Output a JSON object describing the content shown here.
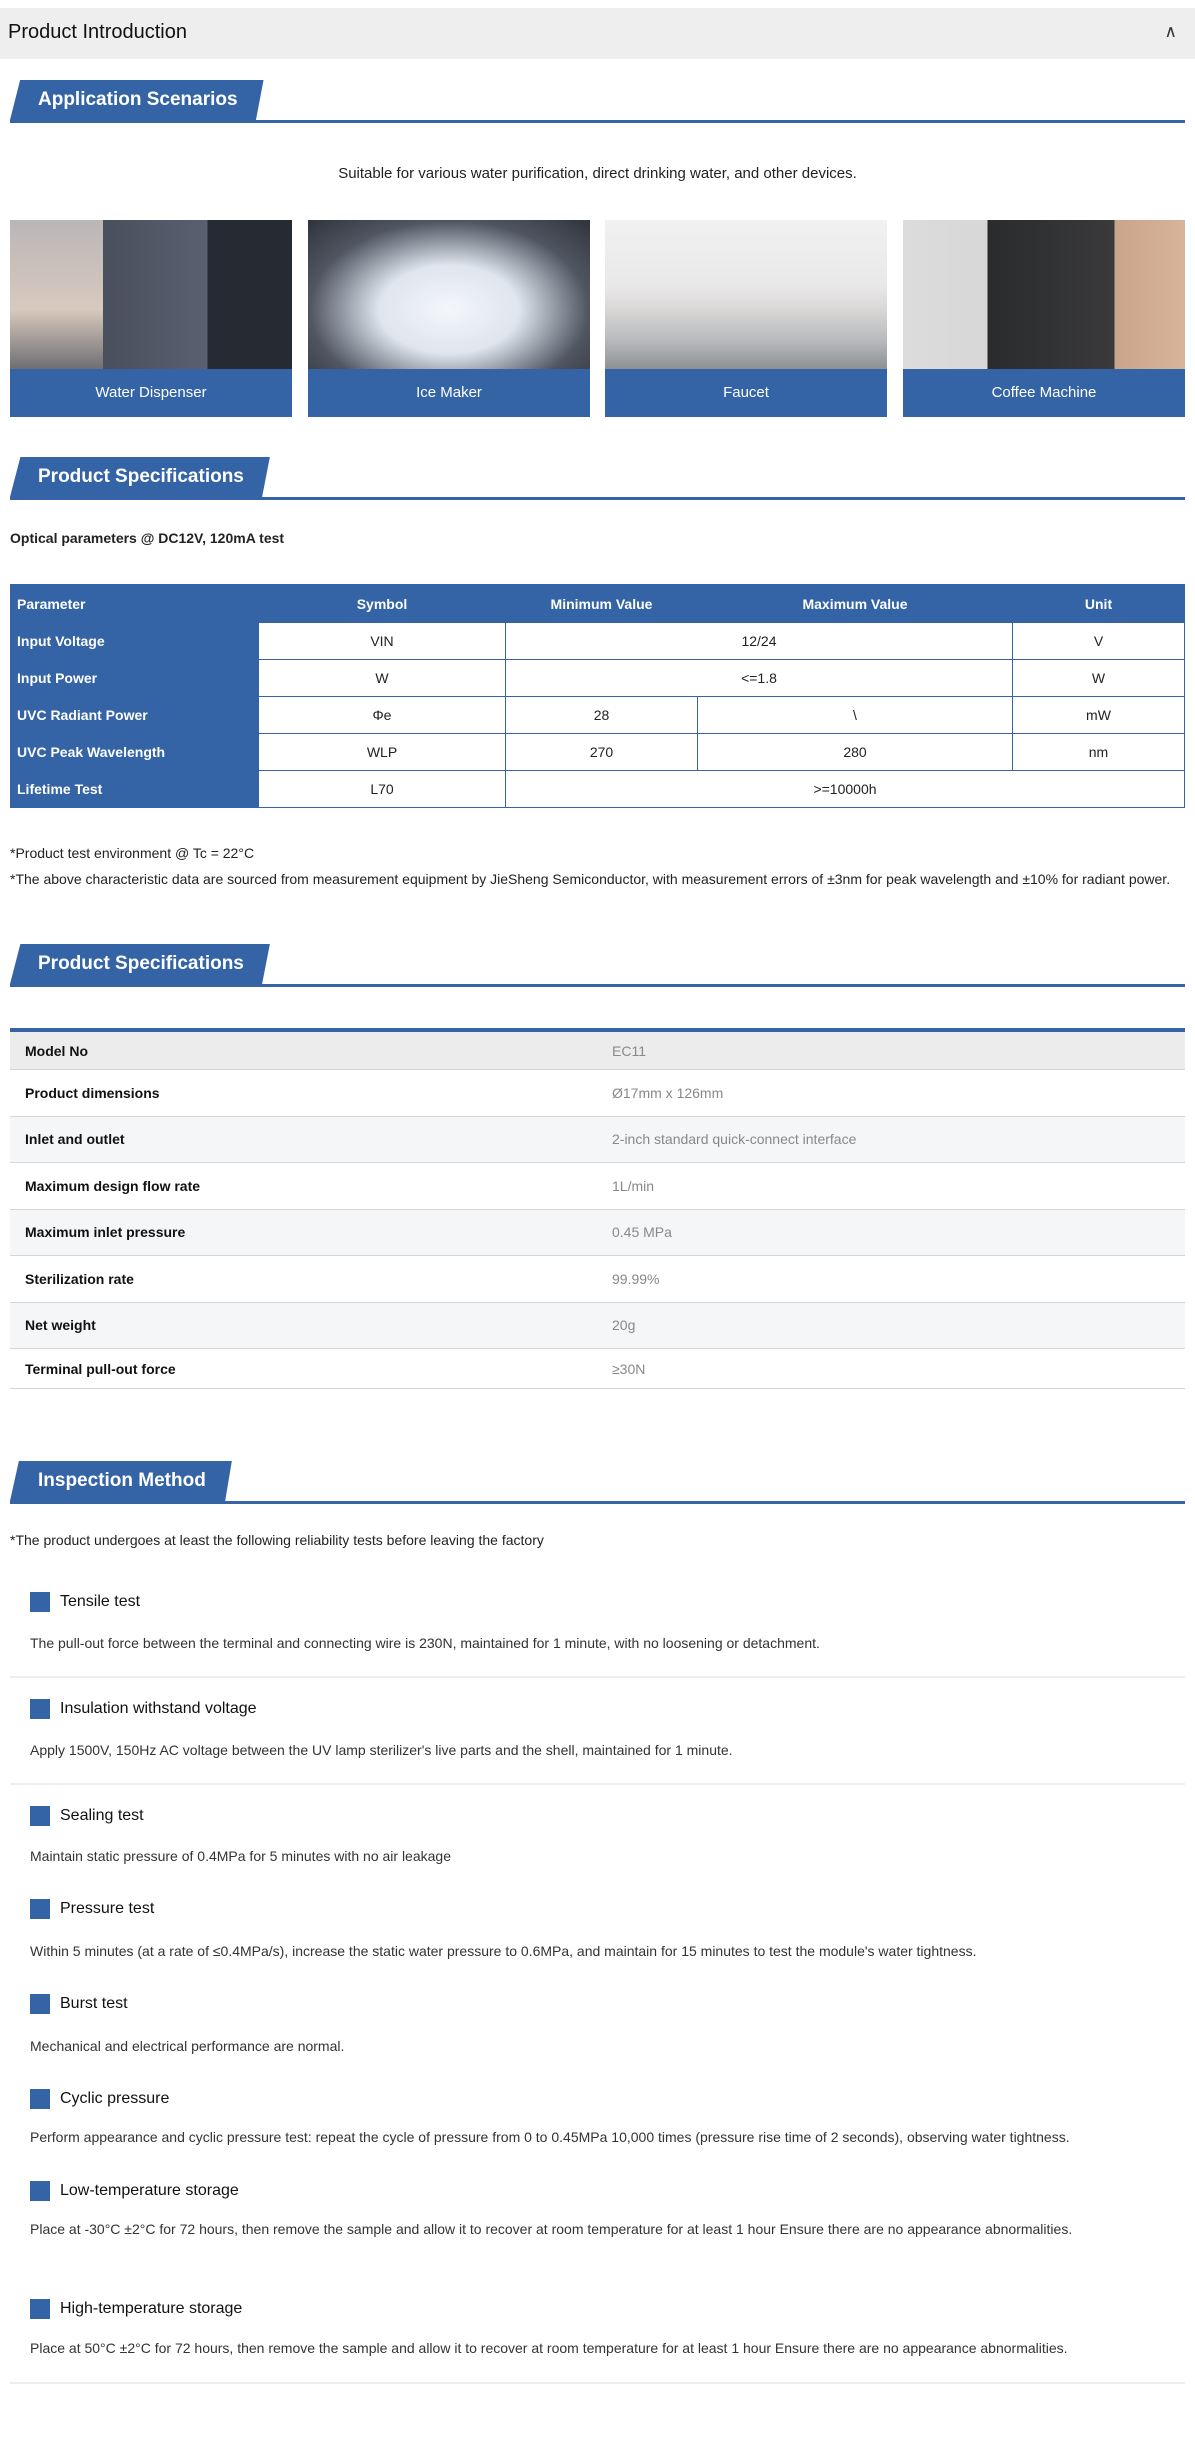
{
  "header": {
    "title": "Product Introduction",
    "collapse_icon": "chevron-up-icon"
  },
  "app": {
    "banner": "Application Scenarios",
    "intro": "Suitable for various water purification, direct drinking water, and other devices.",
    "cards": [
      {
        "label": "Water Dispenser"
      },
      {
        "label": "Ice Maker"
      },
      {
        "label": "Faucet"
      },
      {
        "label": "Coffee Machine"
      }
    ]
  },
  "specs1": {
    "banner": "Product Specifications",
    "subtitle": "Optical parameters @ DC12V, 120mA test",
    "headers": [
      "Parameter",
      "Symbol",
      "Minimum Value",
      "Maximum Value",
      "Unit"
    ],
    "rows": [
      {
        "param": "Input Voltage",
        "symbol": "VIN",
        "value": "12/24",
        "unit": "V"
      },
      {
        "param": "Input Power",
        "symbol": "W",
        "value": "<=1.8",
        "unit": "W"
      },
      {
        "param": "UVC Radiant Power",
        "symbol": "Φe",
        "min": "28",
        "max": "\\",
        "unit": "mW"
      },
      {
        "param": "UVC Peak Wavelength",
        "symbol": "WLP",
        "min": "270",
        "max": "280",
        "unit": "nm"
      },
      {
        "param": "Lifetime Test",
        "symbol": "L70",
        "value": ">=10000h"
      }
    ],
    "note1": "*Product test environment @ Tc = 22°C",
    "note2": "*The above characteristic data are sourced from measurement equipment by JieSheng Semiconductor, with measurement errors of ±3nm for peak wavelength and ±10% for radiant power."
  },
  "specs2": {
    "banner": "Product Specifications",
    "rows": [
      {
        "k": "Model No",
        "v": "EC11"
      },
      {
        "k": "Product dimensions",
        "v": "Ø17mm x 126mm"
      },
      {
        "k": "Inlet and outlet",
        "v": "2-inch standard quick-connect interface"
      },
      {
        "k": "Maximum design flow rate",
        "v": "1L/min"
      },
      {
        "k": "Maximum inlet pressure",
        "v": "0.45 MPa"
      },
      {
        "k": "Sterilization rate",
        "v": "99.99%"
      },
      {
        "k": "Net weight",
        "v": "20g"
      },
      {
        "k": "Terminal pull-out force",
        "v": "≥30N"
      }
    ]
  },
  "inspection": {
    "banner": "Inspection Method",
    "note": "*The product undergoes at least the following reliability tests before leaving the factory",
    "tests": [
      {
        "title": "Tensile test",
        "desc": "The pull-out force between the terminal and connecting wire is 230N, maintained for 1 minute, with no loosening or detachment."
      },
      {
        "title": "Insulation withstand voltage",
        "desc": "Apply 1500V, 150Hz AC voltage between the UV lamp sterilizer's live parts and the shell, maintained for 1 minute."
      },
      {
        "title": "Sealing test",
        "desc": "Maintain static pressure of 0.4MPa for 5 minutes with no air leakage"
      },
      {
        "title": "Pressure test",
        "desc": "Within 5 minutes (at a rate of ≤0.4MPa/s), increase the static water pressure to 0.6MPa, and maintain for 15 minutes to test the module's water tightness."
      },
      {
        "title": "Burst test",
        "desc": "Mechanical and electrical performance are normal."
      },
      {
        "title": "Cyclic pressure",
        "desc": "Perform appearance and cyclic pressure test: repeat the cycle of pressure from 0 to 0.45MPa 10,000 times (pressure rise time of 2 seconds), observing water tightness."
      },
      {
        "title": "Low-temperature storage",
        "desc": "Place at -30°C ±2°C for 72 hours, then remove the sample and allow it to recover at room temperature for at least 1 hour Ensure there are no appearance abnormalities."
      },
      {
        "title": "High-temperature storage",
        "desc": "Place at 50°C ±2°C for 72 hours, then remove the sample and allow it to recover at room temperature for at least 1 hour Ensure there are no appearance abnormalities."
      }
    ]
  },
  "colors": {
    "accent": "#3464a6"
  }
}
